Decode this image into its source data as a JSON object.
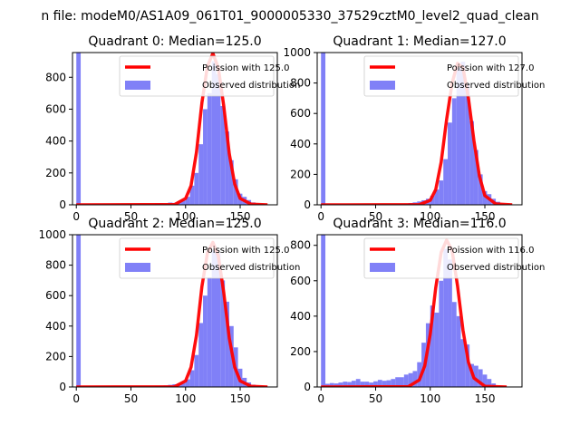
{
  "figure": {
    "suptitle": "n file: modeM0/AS1A09_061T01_9000005330_37529cztM0_level2_quad_clean"
  },
  "chart_data": [
    {
      "type": "bar",
      "title": "Quadrant 0: Median=125.0",
      "median": 125.0,
      "xlim": [
        -3.5,
        184
      ],
      "ylim": [
        0,
        955
      ],
      "xticks": [
        0,
        50,
        100,
        150
      ],
      "yticks": [
        0,
        200,
        400,
        600,
        800
      ],
      "legend": {
        "position": "top-right",
        "poisson_label": "Poission with 125.0",
        "observed_label": "Observed distribution"
      },
      "hist": [
        [
          0,
          955
        ],
        [
          68,
          4
        ],
        [
          72,
          8
        ],
        [
          76,
          10
        ],
        [
          80,
          8
        ],
        [
          84,
          14
        ],
        [
          88,
          12
        ],
        [
          92,
          20
        ],
        [
          96,
          28
        ],
        [
          100,
          50
        ],
        [
          104,
          120
        ],
        [
          108,
          200
        ],
        [
          112,
          380
        ],
        [
          116,
          600
        ],
        [
          120,
          700
        ],
        [
          124,
          900
        ],
        [
          128,
          820
        ],
        [
          132,
          620
        ],
        [
          136,
          460
        ],
        [
          140,
          280
        ],
        [
          144,
          160
        ],
        [
          148,
          70
        ],
        [
          152,
          50
        ],
        [
          156,
          30
        ],
        [
          160,
          15
        ],
        [
          164,
          8
        ],
        [
          168,
          5
        ]
      ],
      "poisson": [
        [
          0,
          0
        ],
        [
          90,
          2
        ],
        [
          100,
          40
        ],
        [
          105,
          120
        ],
        [
          110,
          330
        ],
        [
          115,
          640
        ],
        [
          120,
          870
        ],
        [
          125,
          950
        ],
        [
          130,
          860
        ],
        [
          135,
          620
        ],
        [
          140,
          320
        ],
        [
          145,
          130
        ],
        [
          150,
          40
        ],
        [
          160,
          4
        ],
        [
          175,
          0
        ]
      ]
    },
    {
      "type": "bar",
      "title": "Quadrant 1: Median=127.0",
      "median": 127.0,
      "xlim": [
        -3.5,
        184
      ],
      "ylim": [
        0,
        1000
      ],
      "xticks": [
        0,
        50,
        100,
        150
      ],
      "yticks": [
        0,
        200,
        400,
        600,
        800,
        1000
      ],
      "legend": {
        "position": "top-right",
        "poisson_label": "Poission with 127.0",
        "observed_label": "Observed distribution"
      },
      "hist": [
        [
          0,
          1000
        ],
        [
          72,
          6
        ],
        [
          76,
          8
        ],
        [
          80,
          12
        ],
        [
          84,
          16
        ],
        [
          88,
          22
        ],
        [
          92,
          30
        ],
        [
          96,
          40
        ],
        [
          100,
          60
        ],
        [
          104,
          100
        ],
        [
          108,
          160
        ],
        [
          112,
          300
        ],
        [
          116,
          540
        ],
        [
          120,
          700
        ],
        [
          124,
          900
        ],
        [
          128,
          940
        ],
        [
          132,
          800
        ],
        [
          136,
          550
        ],
        [
          140,
          360
        ],
        [
          144,
          200
        ],
        [
          148,
          90
        ],
        [
          152,
          70
        ],
        [
          156,
          40
        ],
        [
          160,
          20
        ],
        [
          164,
          8
        ]
      ],
      "poisson": [
        [
          0,
          0
        ],
        [
          90,
          1
        ],
        [
          100,
          30
        ],
        [
          105,
          100
        ],
        [
          110,
          280
        ],
        [
          115,
          560
        ],
        [
          120,
          800
        ],
        [
          125,
          930
        ],
        [
          130,
          900
        ],
        [
          135,
          700
        ],
        [
          140,
          420
        ],
        [
          145,
          190
        ],
        [
          150,
          60
        ],
        [
          160,
          6
        ],
        [
          175,
          0
        ]
      ]
    },
    {
      "type": "bar",
      "title": "Quadrant 2: Median=125.0",
      "median": 125.0,
      "xlim": [
        -3.5,
        184
      ],
      "ylim": [
        0,
        1000
      ],
      "xticks": [
        0,
        50,
        100,
        150
      ],
      "yticks": [
        0,
        200,
        400,
        600,
        800,
        1000
      ],
      "legend": {
        "position": "top-right",
        "poisson_label": "Poission with 125.0",
        "observed_label": "Observed distribution"
      },
      "hist": [
        [
          0,
          1000
        ],
        [
          72,
          6
        ],
        [
          76,
          8
        ],
        [
          80,
          10
        ],
        [
          84,
          14
        ],
        [
          88,
          18
        ],
        [
          92,
          22
        ],
        [
          96,
          30
        ],
        [
          100,
          50
        ],
        [
          104,
          110
        ],
        [
          108,
          210
        ],
        [
          112,
          420
        ],
        [
          116,
          600
        ],
        [
          120,
          720
        ],
        [
          124,
          900
        ],
        [
          128,
          880
        ],
        [
          132,
          700
        ],
        [
          136,
          560
        ],
        [
          140,
          400
        ],
        [
          144,
          260
        ],
        [
          148,
          120
        ],
        [
          152,
          60
        ],
        [
          156,
          30
        ],
        [
          160,
          15
        ],
        [
          164,
          6
        ]
      ],
      "poisson": [
        [
          0,
          0
        ],
        [
          90,
          2
        ],
        [
          100,
          40
        ],
        [
          105,
          130
        ],
        [
          110,
          340
        ],
        [
          115,
          660
        ],
        [
          120,
          880
        ],
        [
          125,
          950
        ],
        [
          130,
          860
        ],
        [
          135,
          620
        ],
        [
          140,
          320
        ],
        [
          145,
          130
        ],
        [
          150,
          40
        ],
        [
          160,
          4
        ],
        [
          175,
          0
        ]
      ]
    },
    {
      "type": "bar",
      "title": "Quadrant 3: Median=116.0",
      "median": 116.0,
      "xlim": [
        -3.5,
        184
      ],
      "ylim": [
        0,
        860
      ],
      "xticks": [
        0,
        50,
        100,
        150
      ],
      "yticks": [
        0,
        200,
        400,
        600,
        800
      ],
      "legend": {
        "position": "top-right",
        "poisson_label": "Poission with 116.0",
        "observed_label": "Observed distribution"
      },
      "hist": [
        [
          0,
          860
        ],
        [
          4,
          18
        ],
        [
          8,
          22
        ],
        [
          12,
          20
        ],
        [
          16,
          25
        ],
        [
          20,
          30
        ],
        [
          24,
          28
        ],
        [
          28,
          35
        ],
        [
          32,
          45
        ],
        [
          36,
          30
        ],
        [
          40,
          30
        ],
        [
          44,
          25
        ],
        [
          48,
          32
        ],
        [
          52,
          40
        ],
        [
          56,
          35
        ],
        [
          60,
          38
        ],
        [
          64,
          45
        ],
        [
          68,
          55
        ],
        [
          72,
          55
        ],
        [
          76,
          70
        ],
        [
          80,
          78
        ],
        [
          84,
          90
        ],
        [
          88,
          140
        ],
        [
          92,
          250
        ],
        [
          96,
          360
        ],
        [
          100,
          460
        ],
        [
          104,
          420
        ],
        [
          108,
          600
        ],
        [
          112,
          780
        ],
        [
          116,
          720
        ],
        [
          120,
          480
        ],
        [
          124,
          400
        ],
        [
          128,
          270
        ],
        [
          132,
          240
        ],
        [
          136,
          130
        ],
        [
          140,
          120
        ],
        [
          144,
          100
        ],
        [
          148,
          70
        ],
        [
          152,
          45
        ],
        [
          156,
          20
        ]
      ],
      "poisson": [
        [
          0,
          0
        ],
        [
          80,
          2
        ],
        [
          90,
          40
        ],
        [
          95,
          120
        ],
        [
          100,
          300
        ],
        [
          105,
          560
        ],
        [
          110,
          760
        ],
        [
          115,
          830
        ],
        [
          120,
          770
        ],
        [
          125,
          570
        ],
        [
          130,
          320
        ],
        [
          135,
          140
        ],
        [
          140,
          50
        ],
        [
          150,
          4
        ],
        [
          170,
          0
        ]
      ]
    }
  ]
}
